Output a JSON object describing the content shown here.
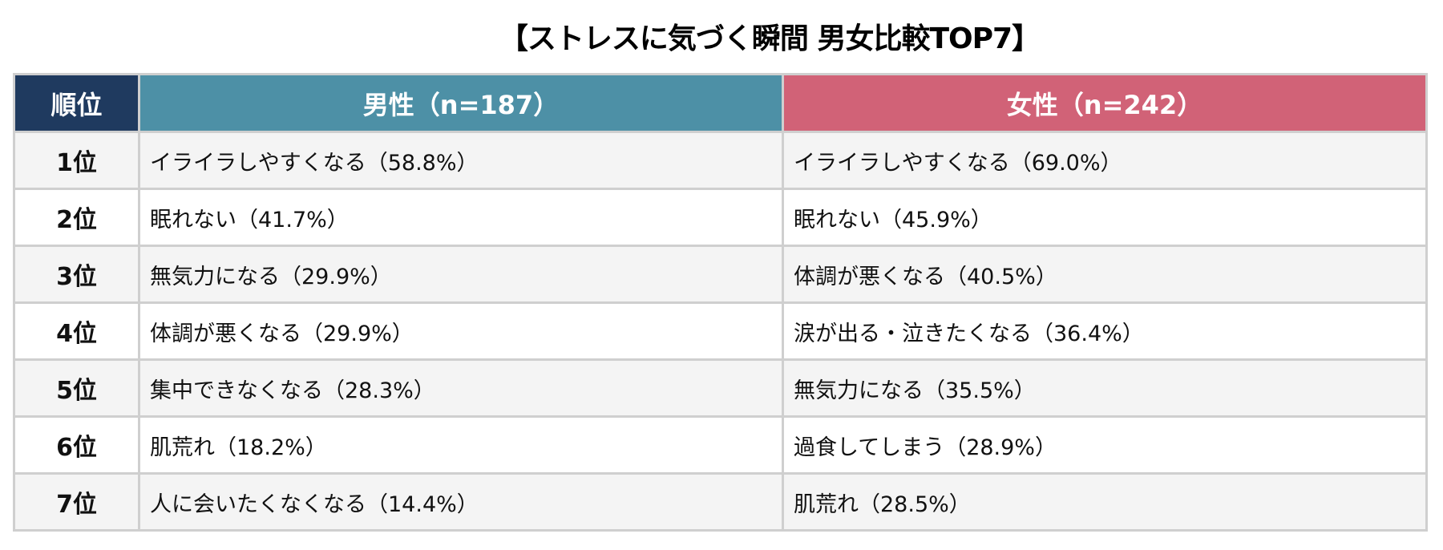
{
  "title": "【ストレスに気づく瞬間 男女比較TOP7】",
  "colors": {
    "rank_header": "#1f3a5f",
    "male_header": "#4d90a6",
    "female_header": "#d16277",
    "row_alt": "#f4f4f4",
    "border": "#cfcfcf"
  },
  "table": {
    "headers": {
      "rank": "順位",
      "male": "男性（n=187）",
      "female": "女性（n=242）"
    },
    "rows": [
      {
        "rank": "1位",
        "male": "イライラしやすくなる（58.8%）",
        "female": "イライラしやすくなる（69.0%）"
      },
      {
        "rank": "2位",
        "male": "眠れない（41.7%）",
        "female": "眠れない（45.9%）"
      },
      {
        "rank": "3位",
        "male": "無気力になる（29.9%）",
        "female": "体調が悪くなる（40.5%）"
      },
      {
        "rank": "4位",
        "male": "体調が悪くなる（29.9%）",
        "female": "涙が出る・泣きたくなる（36.4%）"
      },
      {
        "rank": "5位",
        "male": "集中できなくなる（28.3%）",
        "female": "無気力になる（35.5%）"
      },
      {
        "rank": "6位",
        "male": "肌荒れ（18.2%）",
        "female": "過食してしまう（28.9%）"
      },
      {
        "rank": "7位",
        "male": "人に会いたくなくなる（14.4%）",
        "female": "肌荒れ（28.5%）"
      }
    ]
  },
  "chart_data": {
    "type": "table",
    "title": "【ストレスに気づく瞬間 男女比較TOP7】",
    "columns": [
      "順位",
      "男性（n=187）",
      "女性（n=242）"
    ],
    "series": [
      {
        "name": "男性（n=187）",
        "n": 187,
        "items": [
          "イライラしやすくなる",
          "眠れない",
          "無気力になる",
          "体調が悪くなる",
          "集中できなくなる",
          "肌荒れ",
          "人に会いたくなくなる"
        ],
        "values": [
          58.8,
          41.7,
          29.9,
          29.9,
          28.3,
          18.2,
          14.4
        ]
      },
      {
        "name": "女性（n=242）",
        "n": 242,
        "items": [
          "イライラしやすくなる",
          "眠れない",
          "体調が悪くなる",
          "涙が出る・泣きたくなる",
          "無気力になる",
          "過食してしまう",
          "肌荒れ"
        ],
        "values": [
          69.0,
          45.9,
          40.5,
          36.4,
          35.5,
          28.9,
          28.5
        ]
      }
    ],
    "categories": [
      "1位",
      "2位",
      "3位",
      "4位",
      "5位",
      "6位",
      "7位"
    ],
    "unit": "%"
  }
}
